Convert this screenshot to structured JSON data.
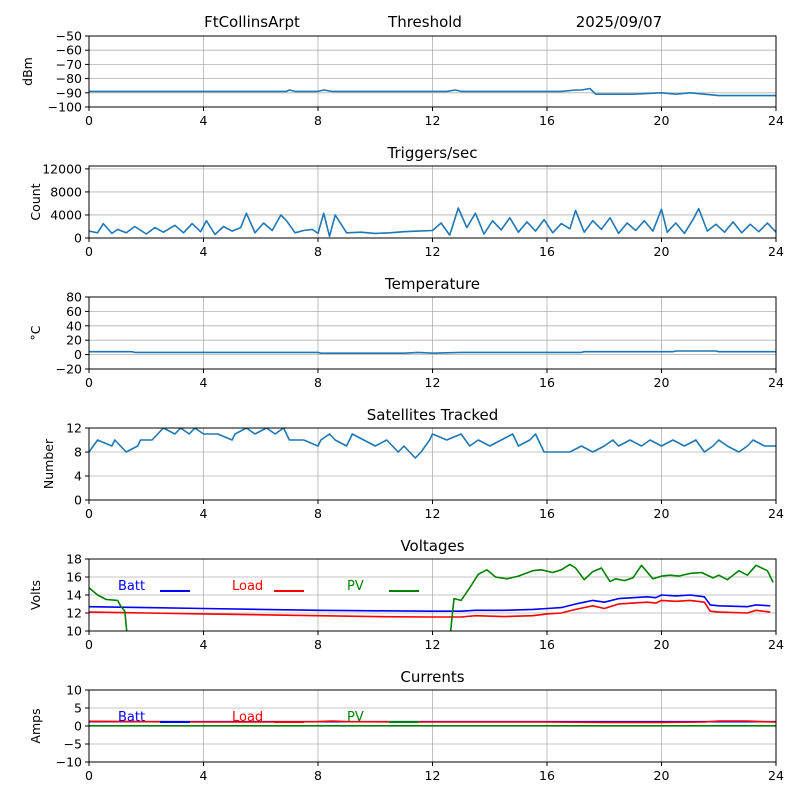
{
  "header": {
    "station": "FtCollinsArpt",
    "mode": "Threshold",
    "date": "2025/09/07"
  },
  "colors": {
    "series_default": "#1f77b4",
    "batt": "#0000ff",
    "load": "#ff0000",
    "pv": "#008000",
    "grid": "#b0b0b0"
  },
  "chart_data": [
    {
      "id": "signal",
      "type": "line",
      "title": "",
      "xlabel": "",
      "ylabel": "dBm",
      "xlim": [
        0,
        24
      ],
      "ylim": [
        -100,
        -50
      ],
      "xticks": [
        0,
        4,
        8,
        12,
        16,
        20,
        24
      ],
      "yticks": [
        -100,
        -90,
        -80,
        -70,
        -60,
        -50
      ],
      "grid": true,
      "series": [
        {
          "color": "#1f77b4",
          "x": [
            0,
            1,
            2,
            3,
            4,
            5,
            6,
            6.9,
            7.0,
            7.2,
            8,
            8.2,
            8.5,
            9,
            10,
            11,
            12,
            12.5,
            12.8,
            13,
            14,
            15,
            16,
            16.5,
            17,
            17.2,
            17.5,
            17.7,
            18,
            19,
            20,
            20.5,
            21,
            21.5,
            22,
            23,
            24
          ],
          "y": [
            -89,
            -89,
            -89,
            -89,
            -89,
            -89,
            -89,
            -89,
            -88,
            -89,
            -89,
            -88,
            -89,
            -89,
            -89,
            -89,
            -89,
            -89,
            -88,
            -89,
            -89,
            -89,
            -89,
            -89,
            -88,
            -88,
            -87,
            -91,
            -91,
            -91,
            -90,
            -91,
            -90,
            -91,
            -92,
            -92,
            -92
          ]
        }
      ]
    },
    {
      "id": "triggers",
      "type": "line",
      "title": "Triggers/sec",
      "xlabel": "",
      "ylabel": "Count",
      "xlim": [
        0,
        24
      ],
      "ylim": [
        0,
        12500
      ],
      "xticks": [
        0,
        4,
        8,
        12,
        16,
        20,
        24
      ],
      "yticks": [
        0,
        4000,
        8000,
        12000
      ],
      "grid": true,
      "series": [
        {
          "color": "#1f77b4",
          "x": [
            0,
            0.3,
            0.5,
            0.8,
            1.0,
            1.3,
            1.6,
            2.0,
            2.3,
            2.6,
            3.0,
            3.3,
            3.6,
            3.9,
            4.1,
            4.4,
            4.7,
            5.0,
            5.3,
            5.5,
            5.8,
            6.1,
            6.4,
            6.7,
            6.9,
            7.2,
            7.5,
            7.8,
            8.0,
            8.2,
            8.4,
            8.6,
            9.0,
            9.5,
            10.0,
            10.5,
            11.0,
            11.5,
            12.0,
            12.3,
            12.6,
            12.9,
            13.2,
            13.5,
            13.8,
            14.1,
            14.4,
            14.7,
            15.0,
            15.3,
            15.6,
            15.9,
            16.2,
            16.5,
            16.8,
            17.0,
            17.3,
            17.6,
            17.9,
            18.2,
            18.5,
            18.8,
            19.1,
            19.4,
            19.7,
            20.0,
            20.2,
            20.5,
            20.8,
            21.1,
            21.3,
            21.6,
            21.9,
            22.2,
            22.5,
            22.8,
            23.1,
            23.4,
            23.7,
            24.0
          ],
          "y": [
            1200,
            900,
            2500,
            800,
            1500,
            900,
            2000,
            700,
            1800,
            1000,
            2200,
            900,
            2500,
            1100,
            3000,
            600,
            2000,
            1200,
            1800,
            4300,
            900,
            2600,
            1300,
            4000,
            3000,
            900,
            1300,
            1500,
            800,
            4300,
            300,
            4000,
            900,
            1000,
            800,
            900,
            1100,
            1200,
            1300,
            2600,
            500,
            5200,
            1800,
            4300,
            700,
            3000,
            1400,
            3500,
            1000,
            2800,
            1200,
            3200,
            900,
            2500,
            1600,
            4800,
            1000,
            3000,
            1500,
            3500,
            800,
            2600,
            1300,
            3000,
            1200,
            5000,
            1000,
            2600,
            800,
            3200,
            5100,
            1200,
            2400,
            1000,
            2800,
            900,
            2400,
            1100,
            2600,
            1000
          ]
        }
      ]
    },
    {
      "id": "temperature",
      "type": "line",
      "title": "Temperature",
      "xlabel": "",
      "ylabel": "°C",
      "xlim": [
        0,
        24
      ],
      "ylim": [
        -20,
        80
      ],
      "xticks": [
        0,
        4,
        8,
        12,
        16,
        20,
        24
      ],
      "yticks": [
        -20,
        0,
        20,
        40,
        60,
        80
      ],
      "grid": true,
      "series": [
        {
          "color": "#1f77b4",
          "x": [
            0,
            1.5,
            1.6,
            8.0,
            8.1,
            11.0,
            11.5,
            12.0,
            13.0,
            13.5,
            17.2,
            17.3,
            20.4,
            20.5,
            21.9,
            22.0,
            24
          ],
          "y": [
            4,
            4,
            3,
            3,
            2,
            2,
            3,
            2,
            3,
            3,
            3,
            4,
            4,
            5,
            5,
            4,
            4
          ]
        }
      ]
    },
    {
      "id": "satellites",
      "type": "line",
      "title": "Satellites Tracked",
      "xlabel": "",
      "ylabel": "Number",
      "xlim": [
        0,
        24
      ],
      "ylim": [
        0,
        12
      ],
      "xticks": [
        0,
        4,
        8,
        12,
        16,
        20,
        24
      ],
      "yticks": [
        0,
        4,
        8,
        12
      ],
      "grid": true,
      "series": [
        {
          "color": "#1f77b4",
          "x": [
            0,
            0.15,
            0.3,
            0.8,
            0.9,
            1.3,
            1.7,
            1.8,
            2.2,
            2.4,
            2.6,
            3.0,
            3.2,
            3.5,
            3.7,
            4.0,
            4.5,
            5.0,
            5.1,
            5.5,
            5.8,
            6.2,
            6.5,
            6.8,
            7.0,
            7.5,
            8.0,
            8.1,
            8.4,
            8.6,
            9.0,
            9.2,
            9.6,
            10.0,
            10.4,
            10.8,
            11.0,
            11.4,
            11.6,
            11.9,
            12.0,
            12.5,
            13.0,
            13.3,
            13.6,
            14.0,
            14.4,
            14.8,
            15.0,
            15.4,
            15.6,
            15.9,
            16.5,
            16.8,
            17.2,
            17.6,
            18.0,
            18.3,
            18.5,
            18.9,
            19.3,
            19.6,
            20.0,
            20.4,
            20.8,
            21.2,
            21.5,
            21.8,
            22.0,
            22.3,
            22.7,
            23.0,
            23.2,
            23.6,
            24.0
          ],
          "y": [
            8,
            9,
            10,
            9,
            10,
            8,
            9,
            10,
            10,
            11,
            12,
            11,
            12,
            11,
            12,
            11,
            11,
            10,
            11,
            12,
            11,
            12,
            11,
            12,
            10,
            10,
            9,
            10,
            11,
            10,
            9,
            11,
            10,
            9,
            10,
            8,
            9,
            7,
            8,
            10,
            11,
            10,
            11,
            9,
            10,
            9,
            10,
            11,
            9,
            10,
            11,
            8,
            8,
            8,
            9,
            8,
            9,
            10,
            9,
            10,
            9,
            10,
            9,
            10,
            9,
            10,
            8,
            9,
            10,
            9,
            8,
            9,
            10,
            9,
            9
          ]
        }
      ]
    },
    {
      "id": "voltages",
      "type": "line",
      "title": "Voltages",
      "xlabel": "",
      "ylabel": "Volts",
      "xlim": [
        0,
        24
      ],
      "ylim": [
        10,
        18
      ],
      "xticks": [
        0,
        4,
        8,
        12,
        16,
        20,
        24
      ],
      "yticks": [
        10,
        12,
        14,
        16,
        18
      ],
      "grid": true,
      "legend": "top-left",
      "series": [
        {
          "name": "Batt",
          "color": "#0000ff",
          "x": [
            0,
            2,
            4,
            6,
            8,
            10,
            12,
            13,
            13.5,
            14.5,
            15.5,
            16,
            16.5,
            17,
            17.3,
            17.6,
            18,
            18.5,
            19,
            19.5,
            19.8,
            20,
            20.5,
            21,
            21.5,
            21.7,
            22,
            23,
            23.3,
            23.8
          ],
          "y": [
            12.7,
            12.6,
            12.5,
            12.4,
            12.3,
            12.25,
            12.2,
            12.2,
            12.3,
            12.3,
            12.4,
            12.5,
            12.6,
            13.0,
            13.2,
            13.4,
            13.2,
            13.6,
            13.7,
            13.8,
            13.7,
            14.0,
            13.9,
            14.0,
            13.8,
            12.9,
            12.8,
            12.7,
            12.9,
            12.8
          ]
        },
        {
          "name": "Load",
          "color": "#ff0000",
          "x": [
            0,
            2,
            4,
            6,
            8,
            10,
            12,
            13,
            13.5,
            14.5,
            15.5,
            16,
            16.5,
            17,
            17.3,
            17.6,
            18,
            18.5,
            19,
            19.5,
            19.8,
            20,
            20.5,
            21,
            21.5,
            21.7,
            22,
            23,
            23.3,
            23.8
          ],
          "y": [
            12.1,
            12.0,
            11.9,
            11.8,
            11.7,
            11.6,
            11.55,
            11.55,
            11.7,
            11.6,
            11.7,
            11.9,
            12.0,
            12.4,
            12.6,
            12.8,
            12.5,
            13.0,
            13.1,
            13.2,
            13.1,
            13.4,
            13.3,
            13.4,
            13.2,
            12.2,
            12.1,
            12.0,
            12.3,
            12.1
          ]
        },
        {
          "name": "PV",
          "color": "#008000",
          "x": [
            0,
            0.3,
            0.6,
            1.0,
            1.1,
            1.25,
            1.35,
            12.6,
            12.75,
            13.0,
            13.3,
            13.6,
            13.9,
            14.2,
            14.6,
            15.0,
            15.5,
            15.8,
            16.2,
            16.5,
            16.8,
            17.0,
            17.3,
            17.6,
            17.9,
            18.2,
            18.4,
            18.7,
            19.0,
            19.3,
            19.7,
            20.0,
            20.3,
            20.6,
            21.0,
            21.4,
            21.8,
            22.0,
            22.3,
            22.7,
            23.0,
            23.3,
            23.7,
            23.9
          ],
          "y": [
            14.8,
            14.0,
            13.5,
            13.4,
            12.8,
            12.2,
            9.0,
            9.0,
            13.6,
            13.4,
            14.8,
            16.3,
            16.8,
            16.0,
            15.8,
            16.1,
            16.7,
            16.8,
            16.5,
            16.8,
            17.4,
            17.0,
            15.7,
            16.6,
            17.0,
            15.5,
            15.8,
            15.6,
            15.9,
            17.3,
            15.8,
            16.1,
            16.2,
            16.1,
            16.4,
            16.5,
            15.9,
            16.2,
            15.7,
            16.7,
            16.2,
            17.3,
            16.7,
            15.4
          ]
        }
      ]
    },
    {
      "id": "currents",
      "type": "line",
      "title": "Currents",
      "xlabel": "",
      "ylabel": "Amps",
      "xlim": [
        0,
        24
      ],
      "ylim": [
        -10,
        10
      ],
      "xticks": [
        0,
        4,
        8,
        12,
        16,
        20,
        24
      ],
      "yticks": [
        -10,
        -5,
        0,
        5,
        10
      ],
      "grid": true,
      "legend": "top-left",
      "series": [
        {
          "name": "Batt",
          "color": "#0000ff",
          "x": [
            0,
            24
          ],
          "y": [
            1.2,
            1.2
          ]
        },
        {
          "name": "Load",
          "color": "#ff0000",
          "x": [
            0,
            2,
            4,
            6,
            8,
            8.5,
            9,
            12,
            16,
            18,
            20,
            21.5,
            22,
            23,
            23.5,
            24
          ],
          "y": [
            1.3,
            1.2,
            1.1,
            1.1,
            1.2,
            1.4,
            1.2,
            1.1,
            1.1,
            1.0,
            1.0,
            1.1,
            1.4,
            1.4,
            1.2,
            1.1
          ]
        },
        {
          "name": "PV",
          "color": "#008000",
          "x": [
            0,
            24
          ],
          "y": [
            0.05,
            0.05
          ]
        }
      ]
    }
  ]
}
